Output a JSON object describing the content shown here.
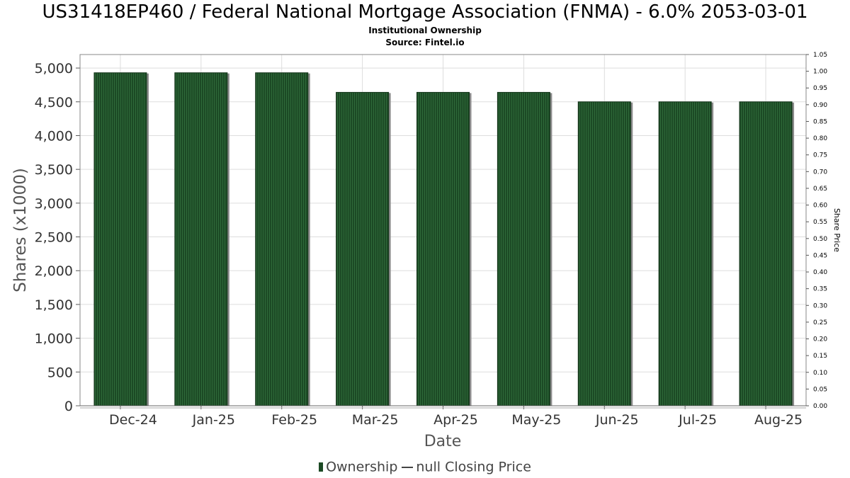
{
  "chart_data": {
    "type": "bar",
    "title": "US31418EP460 / Federal National Mortgage Association (FNMA) - 6.0% 2053-03-01",
    "subtitle": "Institutional Ownership",
    "source": "Source: Fintel.io",
    "xlabel": "Date",
    "ylabel": "Shares (x1000)",
    "y2label": "Share Price",
    "categories": [
      "Dec-24",
      "Jan-25",
      "Feb-25",
      "Mar-25",
      "Apr-25",
      "May-25",
      "Jun-25",
      "Jul-25",
      "Aug-25"
    ],
    "series": [
      {
        "name": "Ownership",
        "values": [
          4930,
          4930,
          4930,
          4640,
          4640,
          4640,
          4500,
          4500,
          4500
        ]
      }
    ],
    "line_series_name": "null Closing Price",
    "ylim": [
      0,
      5200
    ],
    "yticks": [
      0,
      500,
      1000,
      1500,
      2000,
      2500,
      3000,
      3500,
      4000,
      4500,
      5000
    ],
    "y2lim": [
      0,
      1.05
    ],
    "y2ticks": [
      0.0,
      0.05,
      0.1,
      0.15,
      0.2,
      0.25,
      0.3,
      0.35,
      0.4,
      0.45,
      0.5,
      0.55,
      0.6,
      0.65,
      0.7,
      0.75,
      0.8,
      0.85,
      0.9,
      0.95,
      1.0,
      1.05
    ],
    "grid": true,
    "legend_position": "bottom-center",
    "colors": {
      "bar": "#1c4a25",
      "bar_shadow": "#8a8a8a",
      "grid": "#dddddd"
    }
  }
}
